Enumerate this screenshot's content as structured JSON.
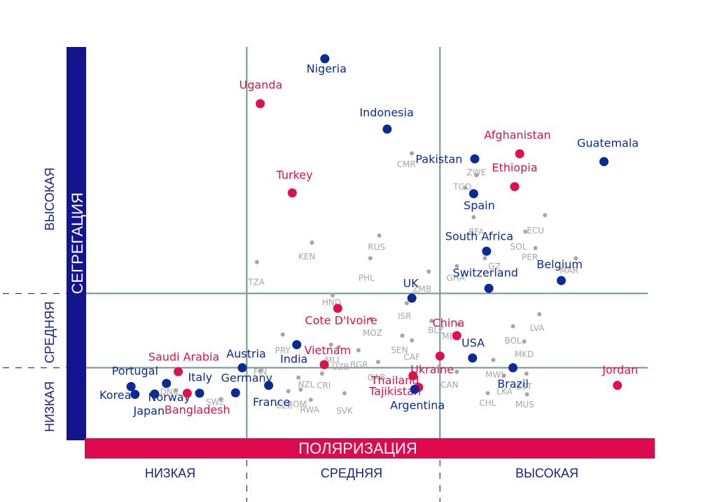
{
  "chart_data": {
    "type": "scatter",
    "xlabel": "ПОЛЯРИЗАЦИЯ",
    "ylabel": "СЕГРЕГАЦИЯ",
    "xlim": [
      0,
      10
    ],
    "ylim": [
      0,
      10
    ],
    "x_levels": [
      "НИЗКАЯ",
      "СРЕДНЯЯ",
      "ВЫСОКАЯ"
    ],
    "y_levels": [
      "НИЗКАЯ",
      "СРЕДНЯЯ",
      "ВЫСОКАЯ"
    ],
    "x_thresholds": [
      2.86,
      6.3
    ],
    "y_thresholds": [
      1.8,
      3.7
    ],
    "colors": {
      "blue": "#0b2a96",
      "red": "#e0104d",
      "grey": "#a6a6a6",
      "y_band": "#13158f",
      "x_band": "#de0a4f"
    },
    "highlighted": [
      {
        "name": "Nigeria",
        "x": 4.25,
        "y": 9.7,
        "color": "blue",
        "lx": 4.28,
        "ly": 9.35,
        "anchor": "middle"
      },
      {
        "name": "Uganda",
        "x": 3.1,
        "y": 8.55,
        "color": "red",
        "lx": 3.11,
        "ly": 8.93,
        "anchor": "middle"
      },
      {
        "name": "Indonesia",
        "x": 5.36,
        "y": 7.9,
        "color": "blue",
        "lx": 5.35,
        "ly": 8.23,
        "anchor": "middle"
      },
      {
        "name": "Afghanistan",
        "x": 7.72,
        "y": 7.27,
        "color": "red",
        "lx": 7.68,
        "ly": 7.65,
        "anchor": "middle"
      },
      {
        "name": "Guatemala",
        "x": 9.22,
        "y": 7.07,
        "color": "blue",
        "lx": 9.29,
        "ly": 7.45,
        "anchor": "middle"
      },
      {
        "name": "Pakistan",
        "x": 6.92,
        "y": 7.14,
        "color": "blue",
        "lx": 6.7,
        "ly": 7.03,
        "anchor": "end",
        "lx_raw": 6.92
      },
      {
        "name": "Ethiopia",
        "x": 7.63,
        "y": 6.43,
        "color": "red",
        "lx": 7.63,
        "ly": 6.82,
        "anchor": "middle"
      },
      {
        "name": "Turkey",
        "x": 3.67,
        "y": 6.27,
        "color": "red",
        "lx": 3.71,
        "ly": 6.63,
        "anchor": "middle"
      },
      {
        "name": "Spain",
        "x": 6.9,
        "y": 6.25,
        "color": "blue",
        "lx": 7.0,
        "ly": 5.85,
        "anchor": "middle"
      },
      {
        "name": "South Africa",
        "x": 7.13,
        "y": 4.78,
        "color": "blue",
        "lx": 7.0,
        "ly": 5.06,
        "anchor": "middle"
      },
      {
        "name": "Belgium",
        "x": 8.46,
        "y": 4.03,
        "color": "blue",
        "lx": 8.43,
        "ly": 4.35,
        "anchor": "middle"
      },
      {
        "name": "Switzerland",
        "x": 7.17,
        "y": 3.83,
        "color": "blue",
        "lx": 7.11,
        "ly": 4.13,
        "anchor": "middle"
      },
      {
        "name": "UK",
        "x": 5.8,
        "y": 3.58,
        "color": "blue",
        "lx": 5.78,
        "ly": 3.86,
        "anchor": "middle"
      },
      {
        "name": "Cote D'Ivoire",
        "x": 4.48,
        "y": 3.32,
        "color": "red",
        "lx": 4.54,
        "ly": 2.91,
        "anchor": "middle"
      },
      {
        "name": "China",
        "x": 6.6,
        "y": 2.62,
        "color": "red",
        "lx": 6.45,
        "ly": 2.85,
        "anchor": "middle"
      },
      {
        "name": "USA",
        "x": 6.88,
        "y": 2.05,
        "color": "blue",
        "lx": 6.89,
        "ly": 2.34,
        "anchor": "middle"
      },
      {
        "name": "India",
        "x": 3.75,
        "y": 2.39,
        "color": "blue",
        "lx": 3.7,
        "ly": 1.93,
        "anchor": "middle"
      },
      {
        "name": "Vietnam",
        "x": 4.24,
        "y": 1.88,
        "color": "red",
        "lx": 4.3,
        "ly": 2.15,
        "anchor": "middle"
      },
      {
        "name": "Ukraine",
        "x": 6.3,
        "y": 2.1,
        "color": "red",
        "lx": 6.16,
        "ly": 1.66,
        "anchor": "middle"
      },
      {
        "name": "Thailand",
        "x": 5.82,
        "y": 1.6,
        "color": "red",
        "lx": 5.5,
        "ly": 1.38,
        "anchor": "middle"
      },
      {
        "name": "Tajikistan",
        "x": 5.92,
        "y": 1.3,
        "color": "red",
        "lx": 5.5,
        "ly": 1.1,
        "anchor": "middle"
      },
      {
        "name": "Argentina",
        "x": 5.85,
        "y": 1.25,
        "color": "blue",
        "lx": 5.9,
        "ly": 0.74,
        "anchor": "middle"
      },
      {
        "name": "Brazil",
        "x": 7.6,
        "y": 1.8,
        "color": "blue",
        "lx": 7.6,
        "ly": 1.29,
        "anchor": "middle"
      },
      {
        "name": "Jordan",
        "x": 9.46,
        "y": 1.35,
        "color": "red",
        "lx": 9.51,
        "ly": 1.65,
        "anchor": "middle"
      },
      {
        "name": "Austria",
        "x": 2.78,
        "y": 1.8,
        "color": "blue",
        "lx": 2.85,
        "ly": 2.06,
        "anchor": "middle"
      },
      {
        "name": "Saudi Arabia",
        "x": 1.64,
        "y": 1.7,
        "color": "red",
        "lx": 1.74,
        "ly": 1.98,
        "anchor": "middle"
      },
      {
        "name": "Portugal",
        "x": 0.8,
        "y": 1.32,
        "color": "blue",
        "lx": 0.87,
        "ly": 1.62,
        "anchor": "middle"
      },
      {
        "name": "Korea",
        "x": 0.87,
        "y": 1.12,
        "color": "blue",
        "lx": 0.52,
        "ly": 1.0,
        "anchor": "middle"
      },
      {
        "name": "Japan",
        "x": 1.22,
        "y": 1.13,
        "color": "blue",
        "lx": 1.12,
        "ly": 0.6,
        "anchor": "middle"
      },
      {
        "name": "Norway",
        "x": 1.43,
        "y": 1.4,
        "color": "blue",
        "lx": 1.48,
        "ly": 0.95,
        "anchor": "middle"
      },
      {
        "name": "Italy",
        "x": 2.02,
        "y": 1.15,
        "color": "blue",
        "lx": 2.03,
        "ly": 1.46,
        "anchor": "middle"
      },
      {
        "name": "Bangladesh",
        "x": 1.8,
        "y": 1.15,
        "color": "red",
        "lx": 1.98,
        "ly": 0.63,
        "anchor": "middle"
      },
      {
        "name": "Germany",
        "x": 2.66,
        "y": 1.16,
        "color": "blue",
        "lx": 2.86,
        "ly": 1.44,
        "anchor": "middle"
      },
      {
        "name": "France",
        "x": 3.25,
        "y": 1.35,
        "color": "blue",
        "lx": 3.3,
        "ly": 0.82,
        "anchor": "middle"
      }
    ],
    "others": [
      {
        "name": "CMR",
        "x": 5.8,
        "y": 7.28,
        "lx": 5.7,
        "ly": 6.93
      },
      {
        "name": "ZWE",
        "x": 6.95,
        "y": 6.72,
        "lx": 6.95,
        "ly": 6.72
      },
      {
        "name": "TGO",
        "x": 6.75,
        "y": 6.4,
        "lx": 6.7,
        "ly": 6.35
      },
      {
        "name": "BFA",
        "x": 6.9,
        "y": 5.65,
        "lx": 6.95,
        "ly": 5.2
      },
      {
        "name": "ECU",
        "x": 8.17,
        "y": 5.7,
        "lx": 8.0,
        "ly": 5.23
      },
      {
        "name": "SOL",
        "x": 7.82,
        "y": 5.28,
        "lx": 7.7,
        "ly": 4.82
      },
      {
        "name": "PER",
        "x": 8.0,
        "y": 4.86,
        "lx": 7.9,
        "ly": 4.55
      },
      {
        "name": "MAR",
        "x": 8.72,
        "y": 4.6,
        "lx": 8.6,
        "ly": 4.21
      },
      {
        "name": "RUS",
        "x": 5.22,
        "y": 5.18,
        "lx": 5.17,
        "ly": 4.81
      },
      {
        "name": "KEN",
        "x": 4.02,
        "y": 5.0,
        "lx": 3.93,
        "ly": 4.57
      },
      {
        "name": "PHL",
        "x": 5.06,
        "y": 4.6,
        "lx": 4.99,
        "ly": 4.02
      },
      {
        "name": "TZA",
        "x": 3.04,
        "y": 4.5,
        "lx": 3.03,
        "ly": 3.92
      },
      {
        "name": "ZMB",
        "x": 6.1,
        "y": 4.26,
        "lx": 5.98,
        "ly": 3.74
      },
      {
        "name": "GHA",
        "x": 6.6,
        "y": 4.4,
        "lx": 6.58,
        "ly": 4.02
      },
      {
        "name": "GZ",
        "x": 7.1,
        "y": 4.6,
        "lx": 7.27,
        "ly": 4.32
      },
      {
        "name": "HND",
        "x": 4.39,
        "y": 3.65,
        "lx": 4.37,
        "ly": 3.4
      },
      {
        "name": "ISR",
        "x": 5.71,
        "y": 3.45,
        "lx": 5.67,
        "ly": 3.05
      },
      {
        "name": "MOZ",
        "x": 5.07,
        "y": 3.05,
        "lx": 5.1,
        "ly": 2.62
      },
      {
        "name": "BLZ",
        "x": 6.15,
        "y": 3.0,
        "lx": 6.23,
        "ly": 2.69
      },
      {
        "name": "MEX",
        "x": 6.63,
        "y": 2.92,
        "lx": 6.5,
        "ly": 2.53
      },
      {
        "name": "LVA",
        "x": 8.07,
        "y": 3.17,
        "lx": 8.03,
        "ly": 2.74
      },
      {
        "name": "BOL",
        "x": 7.6,
        "y": 2.86,
        "lx": 7.6,
        "ly": 2.42
      },
      {
        "name": "MKD",
        "x": 7.8,
        "y": 2.47,
        "lx": 7.8,
        "ly": 2.07
      },
      {
        "name": "PRY",
        "x": 3.5,
        "y": 2.65,
        "lx": 3.5,
        "ly": 2.17
      },
      {
        "name": "SEN",
        "x": 5.63,
        "y": 2.62,
        "lx": 5.58,
        "ly": 2.18
      },
      {
        "name": "CAF",
        "x": 5.8,
        "y": 2.5,
        "lx": 5.8,
        "ly": 2.0
      },
      {
        "name": "MLI",
        "x": 4.36,
        "y": 2.39,
        "lx": 4.38,
        "ly": 1.92
      },
      {
        "name": "UZB",
        "x": 4.5,
        "y": 2.33,
        "lx": 4.53,
        "ly": 1.75
      },
      {
        "name": "BGR",
        "x": 4.85,
        "y": 2.25,
        "lx": 4.86,
        "ly": 1.8
      },
      {
        "name": "GAB",
        "x": 5.2,
        "y": 1.95,
        "lx": 5.17,
        "ly": 1.48
      },
      {
        "name": "MWI",
        "x": 7.25,
        "y": 2.0,
        "lx": 7.27,
        "ly": 1.55
      },
      {
        "name": "CAN",
        "x": 6.6,
        "y": 1.7,
        "lx": 6.47,
        "ly": 1.29
      },
      {
        "name": "LKA",
        "x": 7.44,
        "y": 1.6,
        "lx": 7.45,
        "ly": 1.12
      },
      {
        "name": "EST",
        "x": 7.84,
        "y": 1.65,
        "lx": 7.8,
        "ly": 1.25
      },
      {
        "name": "CHL",
        "x": 7.15,
        "y": 1.15,
        "lx": 7.15,
        "ly": 0.82
      },
      {
        "name": "MUS",
        "x": 7.85,
        "y": 1.12,
        "lx": 7.81,
        "ly": 0.79
      },
      {
        "name": "CRI",
        "x": 4.2,
        "y": 1.65,
        "lx": 4.23,
        "ly": 1.27
      },
      {
        "name": "RWA",
        "x": 4.0,
        "y": 0.98,
        "lx": 3.98,
        "ly": 0.65
      },
      {
        "name": "SVK",
        "x": 4.6,
        "y": 1.15,
        "lx": 4.6,
        "ly": 0.63
      },
      {
        "name": "ROM",
        "x": 3.82,
        "y": 1.24,
        "lx": 3.75,
        "ly": 0.8
      },
      {
        "name": "NZL",
        "x": 3.78,
        "y": 1.55,
        "lx": 3.92,
        "ly": 1.3
      },
      {
        "name": "CZE",
        "x": 3.6,
        "y": 1.2,
        "lx": 3.53,
        "ly": 0.76
      },
      {
        "name": "DNK",
        "x": 1.6,
        "y": 1.22,
        "lx": 1.48,
        "ly": 1.11
      },
      {
        "name": "SWE",
        "x": 2.4,
        "y": 1.0,
        "lx": 2.3,
        "ly": 0.85
      },
      {
        "name": "FIN",
        "x": 3.1,
        "y": 1.72,
        "lx": 3.1,
        "ly": 1.62
      }
    ]
  }
}
